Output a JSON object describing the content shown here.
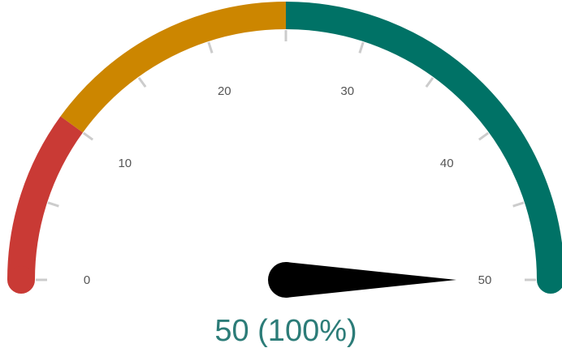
{
  "chart_data": {
    "type": "gauge",
    "min": 0,
    "max": 50,
    "value": 50,
    "readout": "50 (100%)",
    "tick_labels": [
      "0",
      "10",
      "20",
      "30",
      "40",
      "50"
    ],
    "bands": [
      {
        "from": 0,
        "to": 10,
        "color": "#c93a35"
      },
      {
        "from": 10,
        "to": 25,
        "color": "#cc8600"
      },
      {
        "from": 25,
        "to": 50,
        "color": "#007266"
      }
    ],
    "needle_color": "#000000",
    "readout_color": "#2c7c78"
  }
}
